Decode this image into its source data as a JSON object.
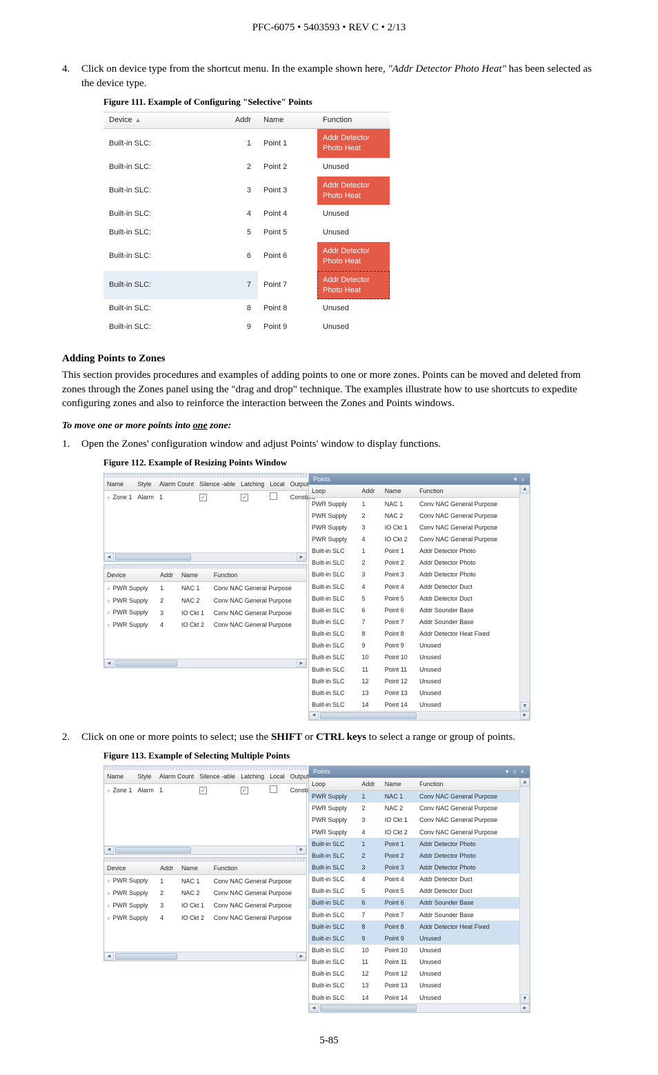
{
  "header": "PFC-6075 • 5403593 • REV C • 2/13",
  "footer": "5-85",
  "step4": {
    "num": "4.",
    "text_pre": "Click on device type from the shortcut menu. In the example shown here, ",
    "text_em": "\"Addr Detector Photo Heat\"",
    "text_post": " has been selected as the device type."
  },
  "fig111_caption": "Figure 111. Example of Configuring \"Selective\" Points",
  "fig111_headers": {
    "device": "Device",
    "addr": "Addr",
    "name": "Name",
    "func": "Function"
  },
  "fig111_rows": [
    {
      "device": "Built-in SLC:",
      "addr": "1",
      "name": "Point 1",
      "func": "Addr Detector Photo Heat",
      "hl": "red"
    },
    {
      "device": "Built-in SLC:",
      "addr": "2",
      "name": "Point 2",
      "func": "Unused",
      "hl": ""
    },
    {
      "device": "Built-in SLC:",
      "addr": "3",
      "name": "Point 3",
      "func": "Addr Detector Photo Heat",
      "hl": "red"
    },
    {
      "device": "Built-in SLC:",
      "addr": "4",
      "name": "Point 4",
      "func": "Unused",
      "hl": ""
    },
    {
      "device": "Built-in SLC:",
      "addr": "5",
      "name": "Point 5",
      "func": "Unused",
      "hl": ""
    },
    {
      "device": "Built-in SLC:",
      "addr": "6",
      "name": "Point 6",
      "func": "Addr Detector Photo Heat",
      "hl": "red"
    },
    {
      "device": "Built-in SLC:",
      "addr": "7",
      "name": "Point 7",
      "func": "Addr Detector Photo Heat",
      "hl": "red-dashed",
      "sel": true
    },
    {
      "device": "Built-in SLC:",
      "addr": "8",
      "name": "Point 8",
      "func": "Unused",
      "hl": ""
    },
    {
      "device": "Built-in SLC:",
      "addr": "9",
      "name": "Point 9",
      "func": "Unused",
      "hl": ""
    }
  ],
  "adding_heading": "Adding Points to Zones",
  "adding_body": "This section provides procedures and examples of adding points to one or more zones. Points can be moved and deleted from zones through the Zones panel using the \"drag and drop\" technique. The examples illustrate how to use shortcuts to expedite configuring zones and also to reinforce the interaction between the Zones and Points windows.",
  "move_heading_pre": "To move one or more points into ",
  "move_heading_u": "one",
  "move_heading_post": " zone:",
  "step1": {
    "num": "1.",
    "text": "Open the Zones' configuration window and adjust Points' window to display functions."
  },
  "fig112_caption": "Figure 112. Example of Resizing Points Window",
  "step2": {
    "num": "2.",
    "text_pre": "Click on one or more points to select; use the ",
    "b1": "SHIFT",
    "mid": " or ",
    "b2": "CTRL keys",
    "text_post": " to select a range or group of points."
  },
  "fig113_caption": "Figure 113. Example of Selecting Multiple Points",
  "zones_headers": [
    "Name",
    "Style",
    "Alarm Count",
    "Silence -able",
    "Latching",
    "Local",
    "Output Pattern"
  ],
  "zones_row": {
    "tri": "▹",
    "name": "Zone 1",
    "style": "Alarm",
    "count": "1",
    "sil": true,
    "latch": true,
    "local": false,
    "pattern": "Constant"
  },
  "dev_headers": [
    "Device",
    "Addr",
    "Name",
    "Function"
  ],
  "dev_rows": [
    {
      "device": "PWR Supply",
      "addr": "1",
      "name": "NAC 1",
      "func": "Conv NAC General Purpose"
    },
    {
      "device": "PWR Supply",
      "addr": "2",
      "name": "NAC 2",
      "func": "Conv NAC General Purpose"
    },
    {
      "device": "PWR Supply",
      "addr": "3",
      "name": "IO Ckt 1",
      "func": "Conv NAC General Purpose"
    },
    {
      "device": "PWR Supply",
      "addr": "4",
      "name": "IO Ckt 2",
      "func": "Conv NAC General Purpose"
    }
  ],
  "points_title": "Points",
  "points_headers": [
    "Loop",
    "Addr",
    "Name",
    "Function"
  ],
  "points_rows": [
    {
      "loop": "PWR Supply",
      "addr": "1",
      "name": "NAC 1",
      "func": "Conv NAC General Purpose"
    },
    {
      "loop": "PWR Supply",
      "addr": "2",
      "name": "NAC 2",
      "func": "Conv NAC General Purpose"
    },
    {
      "loop": "PWR Supply",
      "addr": "3",
      "name": "IO Ckt 1",
      "func": "Conv NAC General Purpose"
    },
    {
      "loop": "PWR Supply",
      "addr": "4",
      "name": "IO Ckt 2",
      "func": "Conv NAC General Purpose"
    },
    {
      "loop": "Built-in SLC",
      "addr": "1",
      "name": "Point 1",
      "func": "Addr Detector Photo"
    },
    {
      "loop": "Built-in SLC",
      "addr": "2",
      "name": "Point 2",
      "func": "Addr Detector Photo"
    },
    {
      "loop": "Built-in SLC",
      "addr": "3",
      "name": "Point 3",
      "func": "Addr Detector Photo"
    },
    {
      "loop": "Built-in SLC",
      "addr": "4",
      "name": "Point 4",
      "func": "Addr Detector Duct"
    },
    {
      "loop": "Built-in SLC",
      "addr": "5",
      "name": "Point 5",
      "func": "Addr Detector Duct"
    },
    {
      "loop": "Built-in SLC",
      "addr": "6",
      "name": "Point 6",
      "func": "Addr Sounder Base"
    },
    {
      "loop": "Built-in SLC",
      "addr": "7",
      "name": "Point 7",
      "func": "Addr Sounder Base"
    },
    {
      "loop": "Built-in SLC",
      "addr": "8",
      "name": "Point 8",
      "func": "Addr Detector Heat Fixed"
    },
    {
      "loop": "Built-in SLC",
      "addr": "9",
      "name": "Point 9",
      "func": "Unused"
    },
    {
      "loop": "Built-in SLC",
      "addr": "10",
      "name": "Point 10",
      "func": "Unused"
    },
    {
      "loop": "Built-in SLC",
      "addr": "11",
      "name": "Point 11",
      "func": "Unused"
    },
    {
      "loop": "Built-in SLC",
      "addr": "12",
      "name": "Point 12",
      "func": "Unused"
    },
    {
      "loop": "Built-in SLC",
      "addr": "13",
      "name": "Point 13",
      "func": "Unused"
    },
    {
      "loop": "Built-in SLC",
      "addr": "14",
      "name": "Point 14",
      "func": "Unused"
    }
  ],
  "fig113_selected_pwr": [
    0
  ],
  "fig113_selected_slc": [
    1,
    2,
    3,
    6,
    8,
    9
  ],
  "colors": {
    "highlight_red": "#e45a47",
    "row_select_blue": "#cfe0f2",
    "row_select_light": "#e5eef6",
    "panel_border": "#b6c4d4"
  }
}
